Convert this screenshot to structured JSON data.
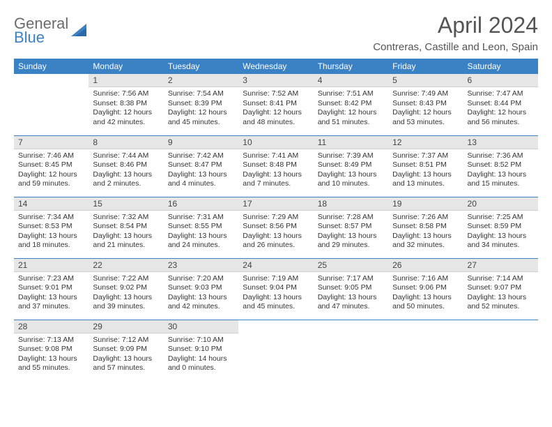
{
  "brand": {
    "part1": "General",
    "part2": "Blue"
  },
  "title": "April 2024",
  "location": "Contreras, Castille and Leon, Spain",
  "colors": {
    "header_bg": "#3b82c4",
    "header_text": "#ffffff",
    "daynum_bg": "#e6e6e6",
    "rule": "#3b82c4",
    "body_text": "#333333",
    "title_text": "#555555",
    "logo_gray": "#6b6b6b",
    "logo_blue": "#3b82c4",
    "page_bg": "#ffffff"
  },
  "weekdays": [
    "Sunday",
    "Monday",
    "Tuesday",
    "Wednesday",
    "Thursday",
    "Friday",
    "Saturday"
  ],
  "weeks": [
    [
      null,
      {
        "n": "1",
        "sunrise": "Sunrise: 7:56 AM",
        "sunset": "Sunset: 8:38 PM",
        "day": "Daylight: 12 hours and 42 minutes."
      },
      {
        "n": "2",
        "sunrise": "Sunrise: 7:54 AM",
        "sunset": "Sunset: 8:39 PM",
        "day": "Daylight: 12 hours and 45 minutes."
      },
      {
        "n": "3",
        "sunrise": "Sunrise: 7:52 AM",
        "sunset": "Sunset: 8:41 PM",
        "day": "Daylight: 12 hours and 48 minutes."
      },
      {
        "n": "4",
        "sunrise": "Sunrise: 7:51 AM",
        "sunset": "Sunset: 8:42 PM",
        "day": "Daylight: 12 hours and 51 minutes."
      },
      {
        "n": "5",
        "sunrise": "Sunrise: 7:49 AM",
        "sunset": "Sunset: 8:43 PM",
        "day": "Daylight: 12 hours and 53 minutes."
      },
      {
        "n": "6",
        "sunrise": "Sunrise: 7:47 AM",
        "sunset": "Sunset: 8:44 PM",
        "day": "Daylight: 12 hours and 56 minutes."
      }
    ],
    [
      {
        "n": "7",
        "sunrise": "Sunrise: 7:46 AM",
        "sunset": "Sunset: 8:45 PM",
        "day": "Daylight: 12 hours and 59 minutes."
      },
      {
        "n": "8",
        "sunrise": "Sunrise: 7:44 AM",
        "sunset": "Sunset: 8:46 PM",
        "day": "Daylight: 13 hours and 2 minutes."
      },
      {
        "n": "9",
        "sunrise": "Sunrise: 7:42 AM",
        "sunset": "Sunset: 8:47 PM",
        "day": "Daylight: 13 hours and 4 minutes."
      },
      {
        "n": "10",
        "sunrise": "Sunrise: 7:41 AM",
        "sunset": "Sunset: 8:48 PM",
        "day": "Daylight: 13 hours and 7 minutes."
      },
      {
        "n": "11",
        "sunrise": "Sunrise: 7:39 AM",
        "sunset": "Sunset: 8:49 PM",
        "day": "Daylight: 13 hours and 10 minutes."
      },
      {
        "n": "12",
        "sunrise": "Sunrise: 7:37 AM",
        "sunset": "Sunset: 8:51 PM",
        "day": "Daylight: 13 hours and 13 minutes."
      },
      {
        "n": "13",
        "sunrise": "Sunrise: 7:36 AM",
        "sunset": "Sunset: 8:52 PM",
        "day": "Daylight: 13 hours and 15 minutes."
      }
    ],
    [
      {
        "n": "14",
        "sunrise": "Sunrise: 7:34 AM",
        "sunset": "Sunset: 8:53 PM",
        "day": "Daylight: 13 hours and 18 minutes."
      },
      {
        "n": "15",
        "sunrise": "Sunrise: 7:32 AM",
        "sunset": "Sunset: 8:54 PM",
        "day": "Daylight: 13 hours and 21 minutes."
      },
      {
        "n": "16",
        "sunrise": "Sunrise: 7:31 AM",
        "sunset": "Sunset: 8:55 PM",
        "day": "Daylight: 13 hours and 24 minutes."
      },
      {
        "n": "17",
        "sunrise": "Sunrise: 7:29 AM",
        "sunset": "Sunset: 8:56 PM",
        "day": "Daylight: 13 hours and 26 minutes."
      },
      {
        "n": "18",
        "sunrise": "Sunrise: 7:28 AM",
        "sunset": "Sunset: 8:57 PM",
        "day": "Daylight: 13 hours and 29 minutes."
      },
      {
        "n": "19",
        "sunrise": "Sunrise: 7:26 AM",
        "sunset": "Sunset: 8:58 PM",
        "day": "Daylight: 13 hours and 32 minutes."
      },
      {
        "n": "20",
        "sunrise": "Sunrise: 7:25 AM",
        "sunset": "Sunset: 8:59 PM",
        "day": "Daylight: 13 hours and 34 minutes."
      }
    ],
    [
      {
        "n": "21",
        "sunrise": "Sunrise: 7:23 AM",
        "sunset": "Sunset: 9:01 PM",
        "day": "Daylight: 13 hours and 37 minutes."
      },
      {
        "n": "22",
        "sunrise": "Sunrise: 7:22 AM",
        "sunset": "Sunset: 9:02 PM",
        "day": "Daylight: 13 hours and 39 minutes."
      },
      {
        "n": "23",
        "sunrise": "Sunrise: 7:20 AM",
        "sunset": "Sunset: 9:03 PM",
        "day": "Daylight: 13 hours and 42 minutes."
      },
      {
        "n": "24",
        "sunrise": "Sunrise: 7:19 AM",
        "sunset": "Sunset: 9:04 PM",
        "day": "Daylight: 13 hours and 45 minutes."
      },
      {
        "n": "25",
        "sunrise": "Sunrise: 7:17 AM",
        "sunset": "Sunset: 9:05 PM",
        "day": "Daylight: 13 hours and 47 minutes."
      },
      {
        "n": "26",
        "sunrise": "Sunrise: 7:16 AM",
        "sunset": "Sunset: 9:06 PM",
        "day": "Daylight: 13 hours and 50 minutes."
      },
      {
        "n": "27",
        "sunrise": "Sunrise: 7:14 AM",
        "sunset": "Sunset: 9:07 PM",
        "day": "Daylight: 13 hours and 52 minutes."
      }
    ],
    [
      {
        "n": "28",
        "sunrise": "Sunrise: 7:13 AM",
        "sunset": "Sunset: 9:08 PM",
        "day": "Daylight: 13 hours and 55 minutes."
      },
      {
        "n": "29",
        "sunrise": "Sunrise: 7:12 AM",
        "sunset": "Sunset: 9:09 PM",
        "day": "Daylight: 13 hours and 57 minutes."
      },
      {
        "n": "30",
        "sunrise": "Sunrise: 7:10 AM",
        "sunset": "Sunset: 9:10 PM",
        "day": "Daylight: 14 hours and 0 minutes."
      },
      null,
      null,
      null,
      null
    ]
  ]
}
